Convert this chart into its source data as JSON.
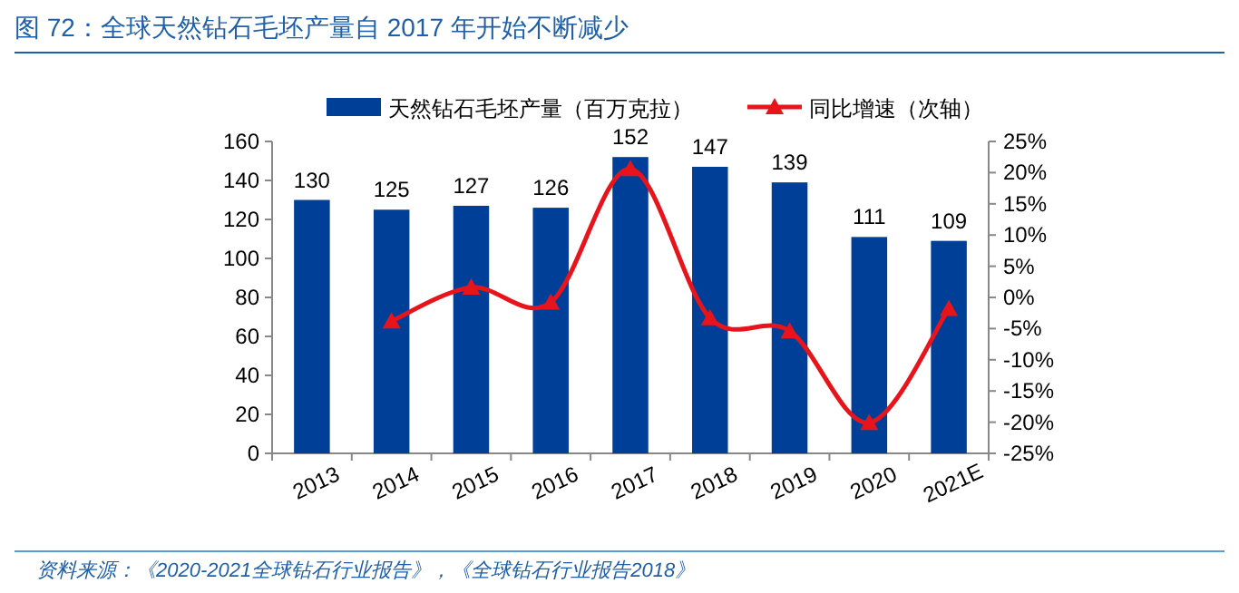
{
  "chart_data": {
    "type": "bar",
    "title": "图 72：全球天然钻石毛坯产量自 2017 年开始不断减少",
    "categories": [
      "2013",
      "2014",
      "2015",
      "2016",
      "2017",
      "2018",
      "2019",
      "2020",
      "2021E"
    ],
    "series": [
      {
        "name": "天然钻石毛坯产量（百万克拉）",
        "color": "#003f98",
        "values": [
          130,
          125,
          127,
          126,
          152,
          147,
          139,
          111,
          109
        ],
        "value_labels": [
          "130",
          "125",
          "127",
          "126",
          "152",
          "147",
          "139",
          "111",
          "109"
        ]
      },
      {
        "name": "同比增速（次轴）",
        "type": "line",
        "axis": "y2",
        "color": "#e8141b",
        "marker": "triangle",
        "values": [
          null,
          -3.8,
          1.6,
          -0.8,
          20.6,
          -3.3,
          -5.4,
          -20.1,
          -1.8
        ]
      }
    ],
    "ylim": [
      0,
      160
    ],
    "yticks": [
      0,
      20,
      40,
      60,
      80,
      100,
      120,
      140,
      160
    ],
    "y2lim": [
      -25,
      25
    ],
    "y2ticks": [
      {
        "value": -25,
        "label": "-25%"
      },
      {
        "value": -20,
        "label": "-20%"
      },
      {
        "value": -15,
        "label": "-15%"
      },
      {
        "value": -10,
        "label": "-10%"
      },
      {
        "value": -5,
        "label": "-5%"
      },
      {
        "value": 0,
        "label": "0%"
      },
      {
        "value": 5,
        "label": "5%"
      },
      {
        "value": 10,
        "label": "10%"
      },
      {
        "value": 15,
        "label": "15%"
      },
      {
        "value": 20,
        "label": "20%"
      },
      {
        "value": 25,
        "label": "25%"
      }
    ],
    "legend": "top",
    "annotations": [
      "资料来源：《2020-2021全球钻石行业报告》，《全球钻石行业报告2018》"
    ]
  }
}
